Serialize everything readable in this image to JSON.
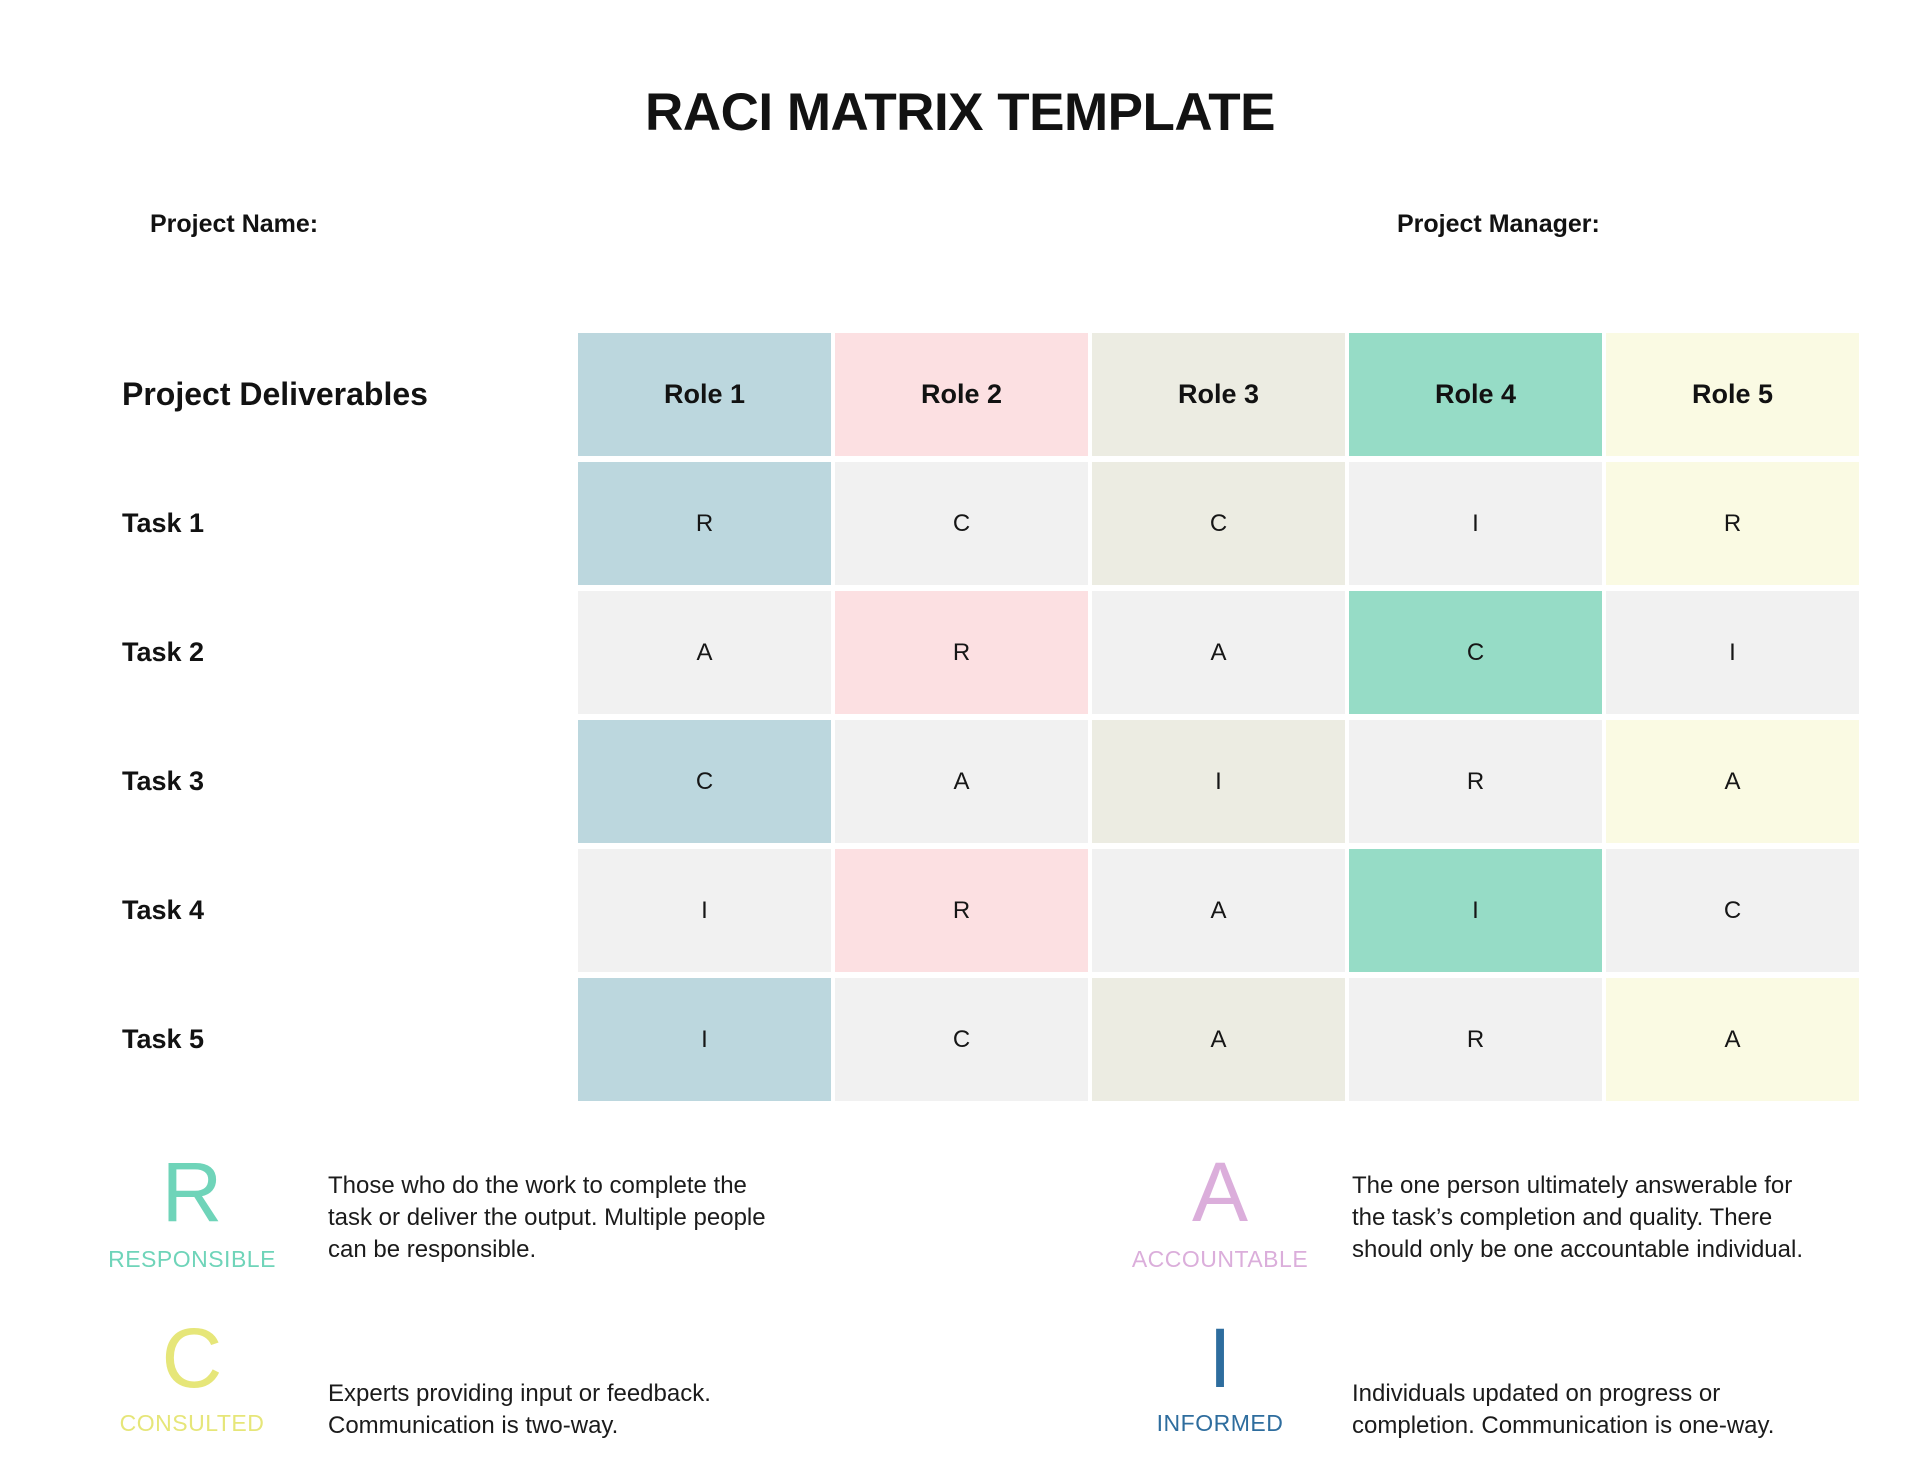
{
  "title": "RACI MATRIX TEMPLATE",
  "meta": {
    "project_name_label": "Project Name:",
    "project_manager_label": "Project Manager:"
  },
  "matrix": {
    "deliverables_header": "Project Deliverables",
    "roles": [
      {
        "label": "Role 1",
        "bg": "#BCD7DE"
      },
      {
        "label": "Role 2",
        "bg": "#FCE0E2"
      },
      {
        "label": "Role 3",
        "bg": "#ECECE2"
      },
      {
        "label": "Role 4",
        "bg": "#96DCC6"
      },
      {
        "label": "Role 5",
        "bg": "#FAFAE3"
      }
    ],
    "tasks": [
      {
        "label": "Task 1",
        "cells": [
          {
            "letter": "R",
            "bg": "#BCD7DE"
          },
          {
            "letter": "C",
            "bg": "#F1F1F1"
          },
          {
            "letter": "C",
            "bg": "#ECECE2"
          },
          {
            "letter": "I",
            "bg": "#F1F1F1"
          },
          {
            "letter": "R",
            "bg": "#FAFAE3"
          }
        ]
      },
      {
        "label": "Task 2",
        "cells": [
          {
            "letter": "A",
            "bg": "#F1F1F1"
          },
          {
            "letter": "R",
            "bg": "#FCE0E2"
          },
          {
            "letter": "A",
            "bg": "#F1F1F1"
          },
          {
            "letter": "C",
            "bg": "#96DCC6"
          },
          {
            "letter": "I",
            "bg": "#F1F1F1"
          }
        ]
      },
      {
        "label": "Task 3",
        "cells": [
          {
            "letter": "C",
            "bg": "#BCD7DE"
          },
          {
            "letter": "A",
            "bg": "#F1F1F1"
          },
          {
            "letter": "I",
            "bg": "#ECECE2"
          },
          {
            "letter": "R",
            "bg": "#F1F1F1"
          },
          {
            "letter": "A",
            "bg": "#FAFAE3"
          }
        ]
      },
      {
        "label": "Task 4",
        "cells": [
          {
            "letter": "I",
            "bg": "#F1F1F1"
          },
          {
            "letter": "R",
            "bg": "#FCE0E2"
          },
          {
            "letter": "A",
            "bg": "#F1F1F1"
          },
          {
            "letter": "I",
            "bg": "#96DCC6"
          },
          {
            "letter": "C",
            "bg": "#F1F1F1"
          }
        ]
      },
      {
        "label": "Task 5",
        "cells": [
          {
            "letter": "I",
            "bg": "#BCD7DE"
          },
          {
            "letter": "C",
            "bg": "#F1F1F1"
          },
          {
            "letter": "A",
            "bg": "#ECECE2"
          },
          {
            "letter": "R",
            "bg": "#F1F1F1"
          },
          {
            "letter": "A",
            "bg": "#FAFAE3"
          }
        ]
      }
    ]
  },
  "legend": [
    {
      "letter": "R",
      "term": "RESPONSIBLE",
      "color": "#6FD4B9",
      "description": "Those who do the work to complete the task or deliver the output. Multiple people can be responsible.",
      "lines": {
        "0": "Those who do the work to complete the",
        "1": "task or deliver the output. Multiple people",
        "2": "can be responsible."
      }
    },
    {
      "letter": "A",
      "term": "ACCOUNTABLE",
      "color": "#DBAEDB",
      "description": "The one person ultimately answerable for the task’s completion and quality. There should only be one accountable individual.",
      "lines": {
        "0": "The one person ultimately answerable for",
        "1": "the task’s completion and quality. There",
        "2": "should only be one accountable individual."
      }
    },
    {
      "letter": "C",
      "term": "CONSULTED",
      "color": "#E6E679",
      "description": "Experts providing input or feedback. Communication is two-way.",
      "lines": {
        "0": "Experts providing input or feedback.",
        "1": "Communication is two-way."
      }
    },
    {
      "letter": "I",
      "term": "INFORMED",
      "color": "#2E6D9E",
      "description": "Individuals updated on progress or completion. Communication is one-way.",
      "lines": {
        "0": "Individuals updated on progress or",
        "1": "completion. Communication is one-way."
      }
    }
  ],
  "colors": {
    "blue": "#BCD7DE",
    "pink": "#FCE0E2",
    "beige": "#ECECE2",
    "teal": "#96DCC6",
    "yellow": "#FAFAE3",
    "gray": "#F1F1F1",
    "legend_responsible": "#6FD4B9",
    "legend_accountable": "#DBAEDB",
    "legend_consulted": "#E6E679",
    "legend_informed": "#2E6D9E"
  }
}
